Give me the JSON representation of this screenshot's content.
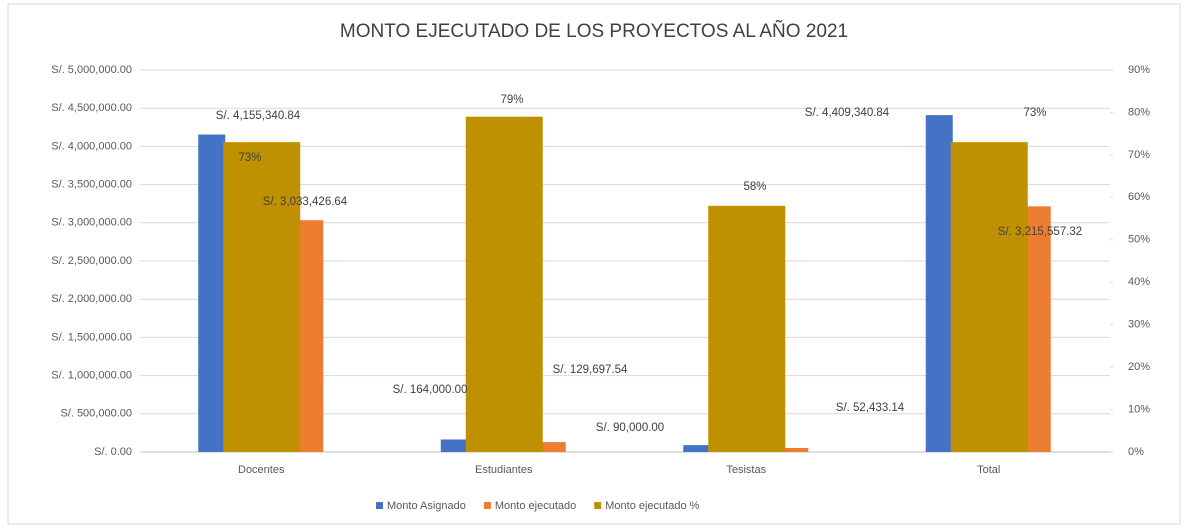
{
  "chart_data": {
    "type": "bar",
    "title": "MONTO EJECUTADO DE LOS PROYECTOS AL AÑO 2021",
    "categories": [
      "Docentes",
      "Estudiantes",
      "Tesistas",
      "Total"
    ],
    "series": [
      {
        "name": "Monto Asignado",
        "color": "#4472c4",
        "values": [
          4155340.84,
          164000.0,
          90000.0,
          4409340.84
        ],
        "value_labels": [
          "S/. 4,155,340.84",
          "S/. 164,000.00",
          "S/. 90,000.00",
          "S/. 4,409,340.84"
        ]
      },
      {
        "name": "Monto ejecutado",
        "color": "#ed7d31",
        "values": [
          3033426.64,
          129697.54,
          52433.14,
          3215557.32
        ],
        "value_labels": [
          "S/. 3,033,426.64",
          "S/. 129,697.54",
          "S/. 52,433.14",
          "S/. 3,215,557.32"
        ]
      },
      {
        "name": "Monto ejecutado %",
        "color": "#bf9000",
        "axis": "y2",
        "values": [
          73,
          79,
          58,
          73
        ],
        "value_labels": [
          "73%",
          "79%",
          "58%",
          "73%"
        ]
      }
    ],
    "ylim": [
      0,
      5000000
    ],
    "yticks": [
      {
        "value": 0,
        "label": "S/. 0.00"
      },
      {
        "value": 500000,
        "label": "S/. 500,000.00"
      },
      {
        "value": 1000000,
        "label": "S/. 1,000,000.00"
      },
      {
        "value": 1500000,
        "label": "S/. 1,500,000.00"
      },
      {
        "value": 2000000,
        "label": "S/. 2,000,000.00"
      },
      {
        "value": 2500000,
        "label": "S/. 2,500,000.00"
      },
      {
        "value": 3000000,
        "label": "S/. 3,000,000.00"
      },
      {
        "value": 3500000,
        "label": "S/. 3,500,000.00"
      },
      {
        "value": 4000000,
        "label": "S/. 4,000,000.00"
      },
      {
        "value": 4500000,
        "label": "S/. 4,500,000.00"
      },
      {
        "value": 5000000,
        "label": "S/. 5,000,000.00"
      }
    ],
    "y2lim": [
      0,
      90
    ],
    "y2ticks": [
      {
        "value": 0,
        "label": "0%"
      },
      {
        "value": 10,
        "label": "10%"
      },
      {
        "value": 20,
        "label": "20%"
      },
      {
        "value": 30,
        "label": "30%"
      },
      {
        "value": 40,
        "label": "40%"
      },
      {
        "value": 50,
        "label": "50%"
      },
      {
        "value": 60,
        "label": "60%"
      },
      {
        "value": 70,
        "label": "70%"
      },
      {
        "value": 80,
        "label": "80%"
      },
      {
        "value": 90,
        "label": "90%"
      }
    ],
    "grid": true,
    "legend": "bottom"
  }
}
